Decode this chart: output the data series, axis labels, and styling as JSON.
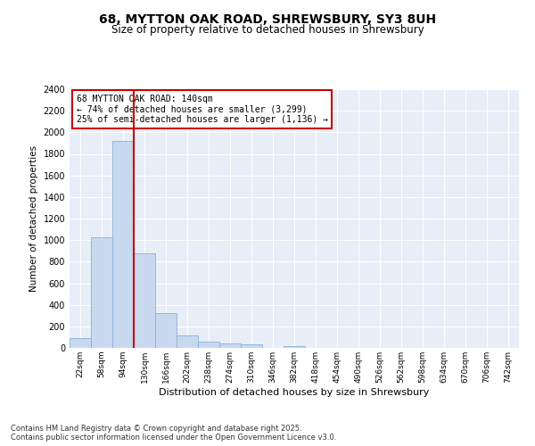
{
  "title_line1": "68, MYTTON OAK ROAD, SHREWSBURY, SY3 8UH",
  "title_line2": "Size of property relative to detached houses in Shrewsbury",
  "xlabel": "Distribution of detached houses by size in Shrewsbury",
  "ylabel": "Number of detached properties",
  "categories": [
    "22sqm",
    "58sqm",
    "94sqm",
    "130sqm",
    "166sqm",
    "202sqm",
    "238sqm",
    "274sqm",
    "310sqm",
    "346sqm",
    "382sqm",
    "418sqm",
    "454sqm",
    "490sqm",
    "526sqm",
    "562sqm",
    "598sqm",
    "634sqm",
    "670sqm",
    "706sqm",
    "742sqm"
  ],
  "bar_values": [
    90,
    1030,
    1920,
    880,
    320,
    115,
    55,
    42,
    30,
    0,
    15,
    0,
    0,
    0,
    0,
    0,
    0,
    0,
    0,
    0,
    0
  ],
  "bar_color": "#c8d8ef",
  "bar_edge_color": "#8ab0d8",
  "vline_x_index": 3,
  "vline_color": "#cc0000",
  "annotation_text": "68 MYTTON OAK ROAD: 140sqm\n← 74% of detached houses are smaller (3,299)\n25% of semi-detached houses are larger (1,136) →",
  "annotation_box_color": "#ffffff",
  "annotation_box_edge": "#cc0000",
  "ylim": [
    0,
    2400
  ],
  "yticks": [
    0,
    200,
    400,
    600,
    800,
    1000,
    1200,
    1400,
    1600,
    1800,
    2000,
    2200,
    2400
  ],
  "footer_line1": "Contains HM Land Registry data © Crown copyright and database right 2025.",
  "footer_line2": "Contains public sector information licensed under the Open Government Licence v3.0.",
  "fig_bg_color": "#ffffff",
  "plot_bg_color": "#e8eef8",
  "grid_color": "#ffffff"
}
